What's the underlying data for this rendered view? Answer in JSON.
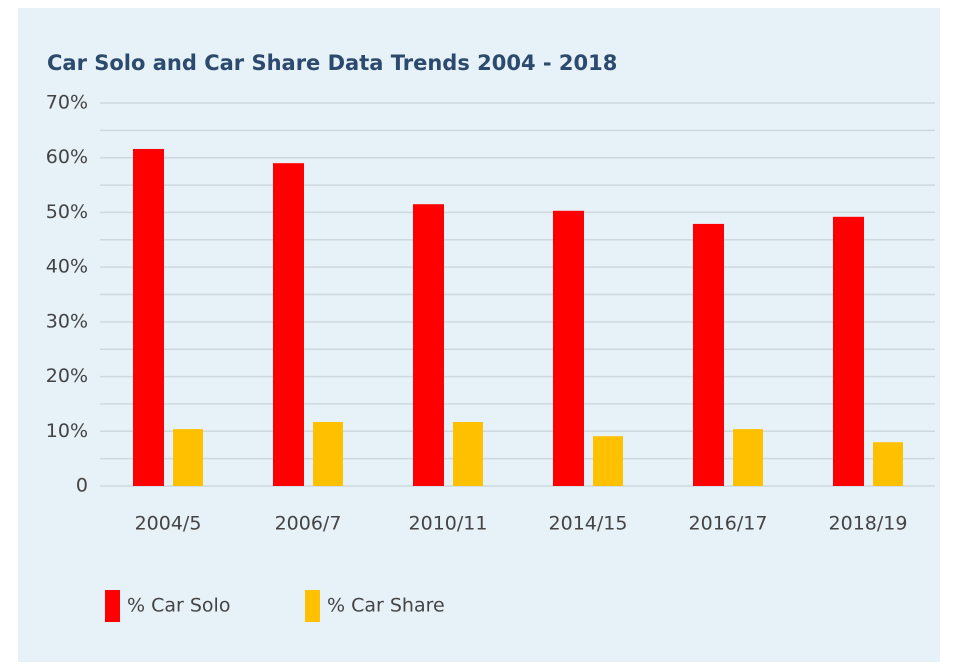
{
  "chart_data": {
    "type": "bar",
    "title": "Car Solo and Car Share Data Trends 2004 - 2018",
    "categories": [
      "2004/5",
      "2006/7",
      "2010/11",
      "2014/15",
      "2016/17",
      "2018/19"
    ],
    "series": [
      {
        "name": "% Car Solo",
        "color": "#ff0000",
        "values": [
          61.6,
          59.0,
          51.5,
          50.3,
          47.9,
          49.2
        ]
      },
      {
        "name": "% Car Share",
        "color": "#ffc000",
        "values": [
          10.4,
          11.7,
          11.7,
          9.1,
          10.4,
          8.0
        ]
      }
    ],
    "ylim": [
      0,
      70
    ],
    "yticks": [
      0,
      {
        "value": 10,
        "label": "10%"
      },
      {
        "value": 20,
        "label": "20%"
      },
      {
        "value": 30,
        "label": "30%"
      },
      {
        "value": 40,
        "label": "40%"
      },
      {
        "value": 50,
        "label": "50%"
      },
      {
        "value": 60,
        "label": "60%"
      },
      {
        "value": 70,
        "label": "70%"
      }
    ],
    "minor_yticks": [
      5,
      15,
      25,
      35,
      45,
      55,
      65
    ],
    "grid": true
  }
}
